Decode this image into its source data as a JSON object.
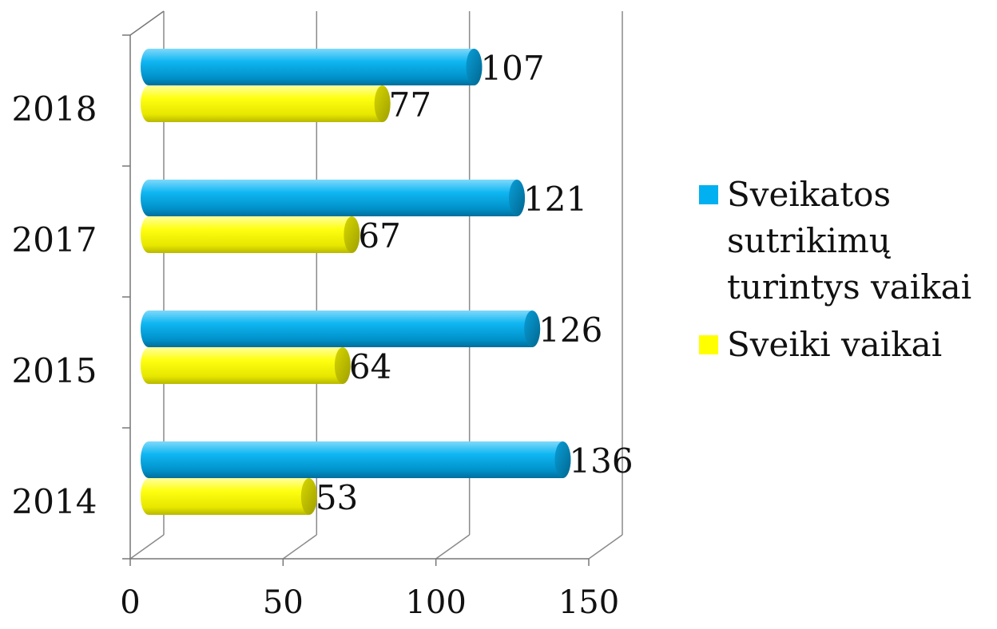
{
  "chart_data": {
    "type": "bar",
    "orientation": "horizontal",
    "style": "3d-cylinder",
    "categories": [
      "2014",
      "2015",
      "2017",
      "2018"
    ],
    "series": [
      {
        "name": "Sveikatos sutrikimų turintys vaikai",
        "color": "#00B0F0",
        "values": [
          136,
          126,
          121,
          107
        ]
      },
      {
        "name": "Sveiki vaikai",
        "color": "#FFFF00",
        "values": [
          53,
          64,
          67,
          77
        ]
      }
    ],
    "xlim": [
      0,
      150
    ],
    "xticks": [
      "0",
      "50",
      "100",
      "150"
    ],
    "legend": {
      "position": "right",
      "entries": [
        {
          "lines": [
            "Sveikatos",
            "sutrikimų",
            "turintys vaikai"
          ],
          "color": "#00B0F0"
        },
        {
          "lines": [
            "Sveiki vaikai"
          ],
          "color": "#FFFF00"
        }
      ]
    },
    "grid": true,
    "title": "",
    "xlabel": "",
    "ylabel": ""
  }
}
